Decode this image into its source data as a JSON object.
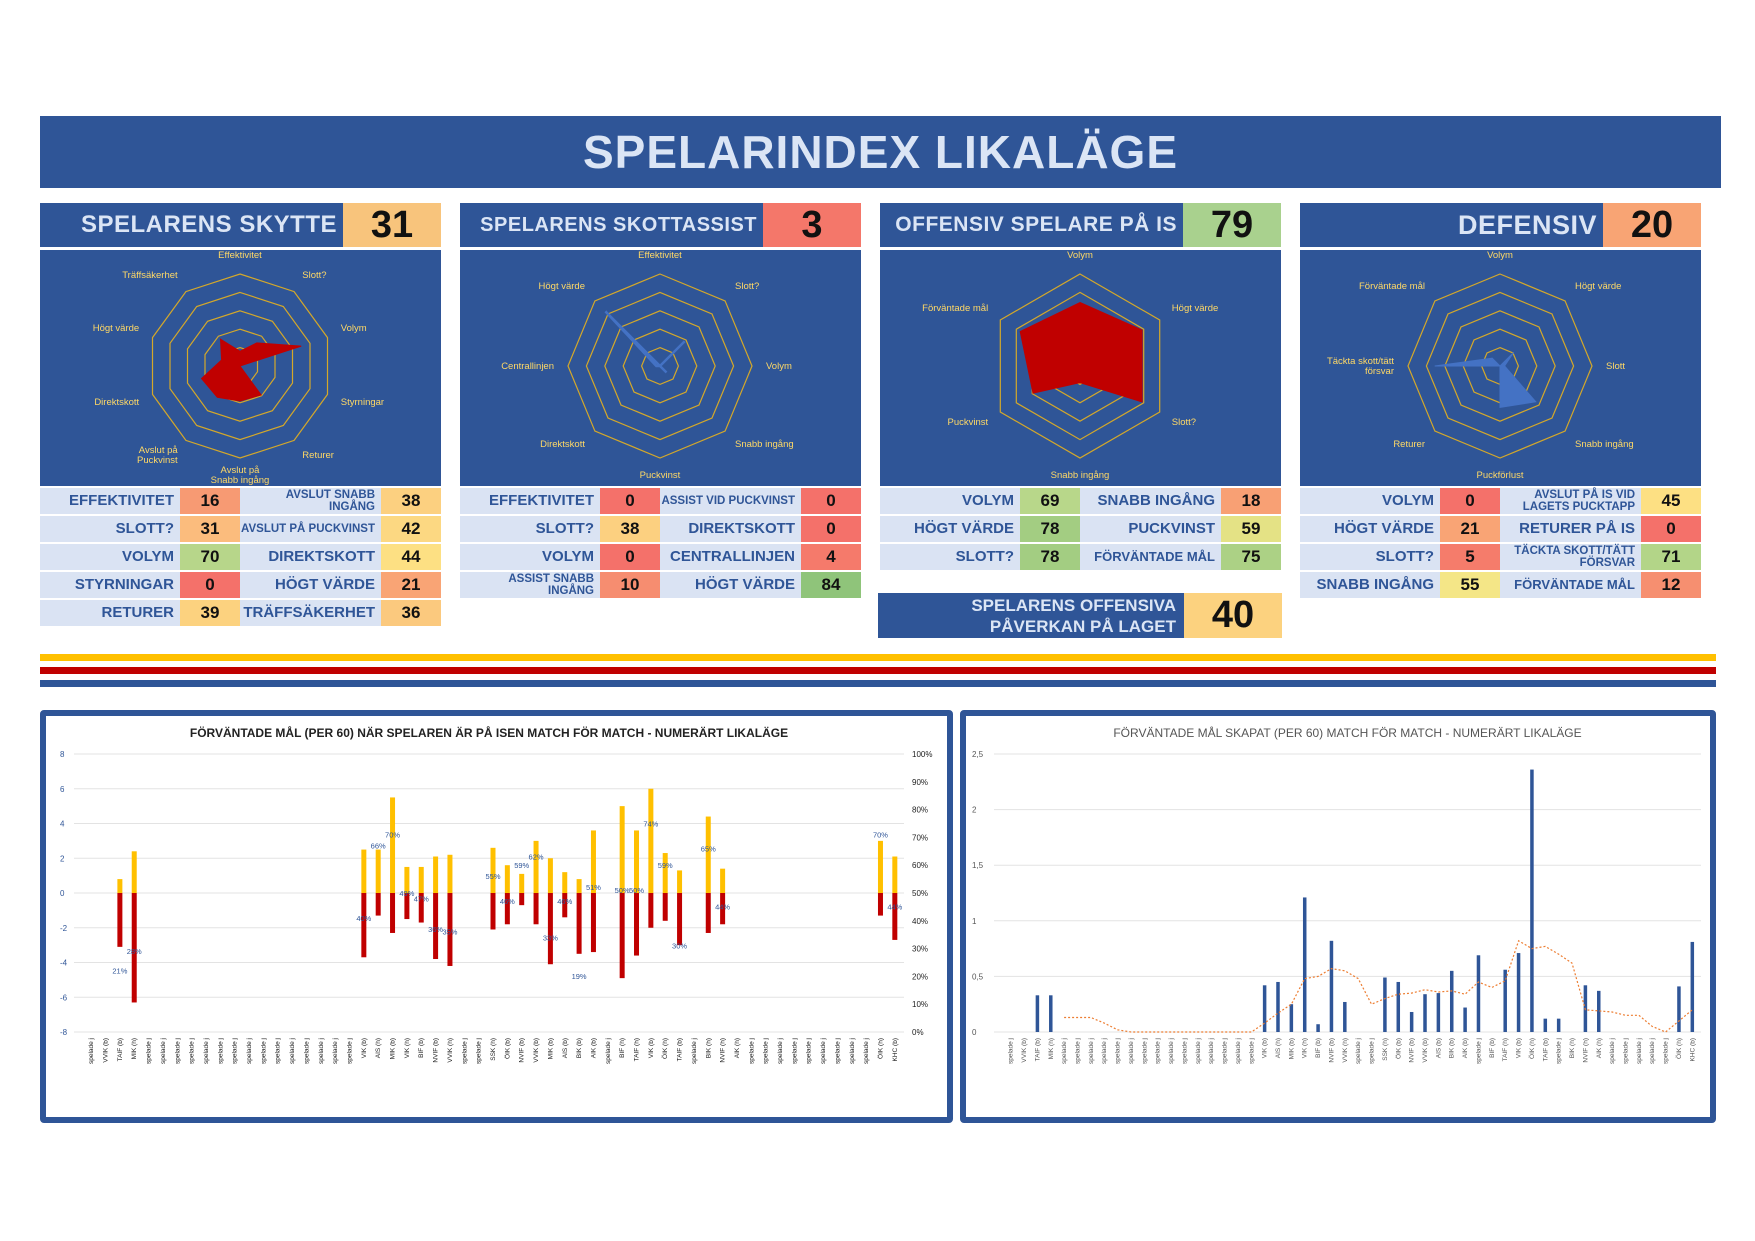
{
  "page_title": "SPELARINDEX LIKALÄGE",
  "colors": {
    "green": "#a9d18e",
    "lightyellow": "#ffe699",
    "orange": "#f8b77a",
    "red": "#f4776a",
    "yellow_line": "#ffc000",
    "red_line": "#c00000",
    "blue": "#2f5597"
  },
  "panels": [
    {
      "title": "SPELARENS SKYTTE",
      "score": "31",
      "score_color": "#f8c47c",
      "title_size": "24px",
      "radar": {
        "labels": [
          "Effektivitet",
          "Slott?",
          "Volym",
          "Styrningar",
          "Returer",
          "Avslut på Snabb ingång",
          "Avslut på Puckvinst",
          "Direktskott",
          "Högt värde",
          "Träffsäkerhet"
        ],
        "values": [
          16,
          31,
          70,
          0,
          39,
          38,
          42,
          44,
          21,
          36
        ],
        "fill": true,
        "color": "#c00000"
      },
      "metrics": [
        {
          "label": "EFFEKTIVITET",
          "value": "16",
          "color": "#f79a73"
        },
        {
          "label": "AVSLUT SNABB INGÅNG",
          "value": "38",
          "color": "#fcd080"
        },
        {
          "label": "SLOTT?",
          "value": "31",
          "color": "#fbbc7d"
        },
        {
          "label": "AVSLUT PÅ PUCKVINST",
          "value": "42",
          "color": "#fcd882"
        },
        {
          "label": "VOLYM",
          "value": "70",
          "color": "#b7d68a"
        },
        {
          "label": "DIREKTSKOTT",
          "value": "44",
          "color": "#fde083"
        },
        {
          "label": "STYRNINGAR",
          "value": "0",
          "color": "#f4716a"
        },
        {
          "label": "HÖGT VÄRDE",
          "value": "21",
          "color": "#f9a475"
        },
        {
          "label": "RETURER",
          "value": "39",
          "color": "#fcd27f"
        },
        {
          "label": "TRÄFFSÄKERHET",
          "value": "36",
          "color": "#fbc97e"
        }
      ]
    },
    {
      "title": "SPELARENS SKOTTASSIST",
      "score": "3",
      "score_color": "#f4776a",
      "title_size": "20px",
      "radar": {
        "labels": [
          "Effektivitet",
          "Slott?",
          "Volym",
          "Snabb ingång",
          "Puckvinst",
          "Direktskott",
          "Centrallinjen",
          "Högt värde"
        ],
        "values": [
          0,
          38,
          0,
          10,
          0,
          0,
          4,
          84
        ],
        "fill": false,
        "color": "#4472c4"
      },
      "metrics": [
        {
          "label": "EFFEKTIVITET",
          "value": "0",
          "color": "#f4716a"
        },
        {
          "label": "ASSIST VID PUCKVINST",
          "value": "0",
          "color": "#f4716a"
        },
        {
          "label": "SLOTT?",
          "value": "38",
          "color": "#fcd080"
        },
        {
          "label": "DIREKTSKOTT",
          "value": "0",
          "color": "#f4716a"
        },
        {
          "label": "VOLYM",
          "value": "0",
          "color": "#f4716a"
        },
        {
          "label": "CENTRALLINJEN",
          "value": "4",
          "color": "#f57a6b"
        },
        {
          "label": "ASSIST SNABB INGÅNG",
          "value": "10",
          "color": "#f68d70"
        },
        {
          "label": "HÖGT VÄRDE",
          "value": "84",
          "color": "#8fc47a"
        }
      ]
    },
    {
      "title": "OFFENSIV SPELARE PÅ IS",
      "score": "79",
      "score_color": "#a9d18e",
      "title_size": "21px",
      "radar": {
        "labels": [
          "Volym",
          "Högt värde",
          "Slott?",
          "Snabb ingång",
          "Puckvinst",
          "Förväntade mål"
        ],
        "values": [
          69,
          78,
          78,
          18,
          59,
          75
        ],
        "fill": true,
        "color": "#c00000"
      },
      "metrics": [
        {
          "label": "VOLYM",
          "value": "69",
          "color": "#b8d78a"
        },
        {
          "label": "SNABB INGÅNG",
          "value": "18",
          "color": "#f8a074"
        },
        {
          "label": "HÖGT VÄRDE",
          "value": "78",
          "color": "#a3cd82"
        },
        {
          "label": "PUCKVINST",
          "value": "59",
          "color": "#e4e285"
        },
        {
          "label": "SLOTT?",
          "value": "78",
          "color": "#a3cd82"
        },
        {
          "label": "FÖRVÄNTADE MÅL",
          "value": "75",
          "color": "#acd185"
        }
      ]
    },
    {
      "title": "DEFENSIV",
      "score": "20",
      "score_color": "#f8a474",
      "title_size": "27px",
      "radar": {
        "labels": [
          "Volym",
          "Högt värde",
          "Slott",
          "Snabb ingång",
          "Puckförlust",
          "Returer",
          "Täckta skott/tätt försvar",
          "Förväntade mål"
        ],
        "values": [
          0,
          21,
          5,
          55,
          45,
          0,
          71,
          12
        ],
        "fill": true,
        "color": "#4472c4"
      },
      "metrics": [
        {
          "label": "VOLYM",
          "value": "0",
          "color": "#f4716a"
        },
        {
          "label": "AVSLUT PÅ IS VID LAGETS PUCKTAPP",
          "value": "45",
          "color": "#fde083"
        },
        {
          "label": "HÖGT VÄRDE",
          "value": "21",
          "color": "#f9a475"
        },
        {
          "label": "RETURER PÅ IS",
          "value": "0",
          "color": "#f4716a"
        },
        {
          "label": "SLOTT?",
          "value": "5",
          "color": "#f57c6b"
        },
        {
          "label": "TÄCKTA SKOTT/TÄTT FÖRSVAR",
          "value": "71",
          "color": "#b3d588"
        },
        {
          "label": "SNABB INGÅNG",
          "value": "55",
          "color": "#f4e687"
        },
        {
          "label": "FÖRVÄNTADE MÅL",
          "value": "12",
          "color": "#f68f70"
        }
      ]
    }
  ],
  "impact": {
    "title": "SPELARENS OFFENSIVA PÅVERKAN PÅ LAGET",
    "value": "40",
    "color": "#fcd27f"
  },
  "chart_data": [
    {
      "type": "bar",
      "title": "FÖRVÄNTADE MÅL (PER 60) NÄR SPELAREN ÄR PÅ ISEN MATCH FÖR MATCH - NUMERÄRT LIKALÄGE",
      "categories": [
        "spelade j",
        "VVIK (b)",
        "TAIF (b)",
        "MIK (h)",
        "spelade j",
        "spelade j",
        "spelade j",
        "spelade j",
        "spelade j",
        "spelade j",
        "spelade j",
        "spelade j",
        "spelade j",
        "spelade j",
        "spelade j",
        "spelade j",
        "spelade j",
        "spelade j",
        "spelade j",
        "VIK (b)",
        "AIS (h)",
        "MIK (b)",
        "VIK (h)",
        "BIF (b)",
        "NVIF (b)",
        "VVIK (h)",
        "spelade j",
        "spelade j",
        "SSK (h)",
        "ÖIK (b)",
        "NVIF (b)",
        "VVIK (b)",
        "MIK (b)",
        "AIS (b)",
        "BIK (b)",
        "AIK (b)",
        "spelade j",
        "BIF (h)",
        "TAIF (h)",
        "VIK (b)",
        "ÖIK (h)",
        "TAIF (b)",
        "spelade j",
        "BIK (h)",
        "NVIF (h)",
        "AIK (h)",
        "spelade j",
        "spelade j",
        "spelade j",
        "spelade j",
        "spelade j",
        "spelade j",
        "spelade j",
        "spelade j",
        "spelade j",
        "ÖIK (h)",
        "KHC (b)"
      ],
      "series": [
        {
          "name": "",
          "values": [
            null,
            null,
            0.8,
            2.4,
            null,
            null,
            null,
            null,
            null,
            null,
            null,
            null,
            null,
            null,
            null,
            null,
            null,
            null,
            null,
            2.5,
            2.5,
            5.5,
            1.5,
            1.5,
            2.1,
            2.2,
            null,
            null,
            2.6,
            1.6,
            1.1,
            3.0,
            2.0,
            1.2,
            0.8,
            3.6,
            null,
            5.0,
            3.6,
            6.0,
            2.3,
            1.3,
            null,
            4.4,
            1.4,
            null,
            null,
            null,
            null,
            null,
            null,
            null,
            null,
            null,
            null,
            3.0,
            2.1
          ]
        },
        {
          "name": "",
          "values": [
            null,
            null,
            -3.1,
            -6.3,
            null,
            null,
            null,
            null,
            null,
            null,
            null,
            null,
            null,
            null,
            null,
            null,
            null,
            null,
            null,
            -3.7,
            -1.3,
            -2.3,
            -1.5,
            -1.7,
            -3.8,
            -4.2,
            null,
            null,
            -2.1,
            -1.8,
            -0.7,
            -1.8,
            -4.1,
            -1.4,
            -3.5,
            -3.4,
            null,
            -4.9,
            -3.6,
            -2.0,
            -1.6,
            -3.0,
            null,
            -2.3,
            -1.8,
            null,
            null,
            null,
            null,
            null,
            null,
            null,
            null,
            null,
            null,
            -1.3,
            -2.7
          ]
        }
      ],
      "percent_labels": [
        null,
        null,
        "21%",
        "28%",
        null,
        null,
        null,
        null,
        null,
        null,
        null,
        null,
        null,
        null,
        null,
        null,
        null,
        null,
        null,
        "40%",
        "66%",
        "70%",
        "49%",
        "47%",
        "36%",
        "35%",
        null,
        null,
        "55%",
        "46%",
        "59%",
        "62%",
        "33%",
        "46%",
        "19%",
        "51%",
        null,
        "50%",
        "50%",
        "74%",
        "59%",
        "30%",
        null,
        "65%",
        "44%",
        null,
        null,
        null,
        null,
        null,
        null,
        null,
        null,
        null,
        null,
        "70%",
        "44%"
      ],
      "ylim": [
        -8,
        8
      ],
      "yticks": [
        "8",
        "6",
        "4",
        "2",
        "0",
        "-2",
        "-4",
        "-6",
        "-8"
      ],
      "y2ticks": [
        "100%",
        "90%",
        "80%",
        "70%",
        "60%",
        "50%",
        "40%",
        "30%",
        "20%",
        "10%",
        "0%"
      ],
      "grid": true
    },
    {
      "type": "bar",
      "title": "FÖRVÄNTADE MÅL SKAPAT (PER 60) MATCH FÖR MATCH - NUMERÄRT LIKALÄGE",
      "categories": [
        "spelade j",
        "VVIK (b)",
        "TAIF (b)",
        "MIK (h)",
        "spelade j",
        "spelade j",
        "spelade j",
        "spelade j",
        "spelade j",
        "spelade j",
        "spelade j",
        "spelade j",
        "spelade j",
        "spelade j",
        "spelade j",
        "spelade j",
        "spelade j",
        "spelade j",
        "spelade j",
        "VIK (b)",
        "AIS (h)",
        "MIK (b)",
        "VIK (h)",
        "BIF (b)",
        "NVIF (b)",
        "VVIK (h)",
        "spelade j",
        "spelade j",
        "SSK (h)",
        "ÖIK (b)",
        "NVIF (b)",
        "VVIK (b)",
        "AIS (b)",
        "BIK (b)",
        "AIK (b)",
        "spelade j",
        "BIF (b)",
        "TAIF (h)",
        "VIK (b)",
        "ÖIK (h)",
        "TAIF (b)",
        "spelade j",
        "BIK (h)",
        "NVIF (h)",
        "AIK (h)",
        "spelade j",
        "spelade j",
        "spelade j",
        "spelade j",
        "spelade j",
        "ÖIK (h)",
        "KHC (b)"
      ],
      "values": [
        0,
        0,
        0.33,
        0.33,
        0,
        0,
        0,
        0,
        0,
        0,
        0,
        0,
        0,
        0,
        0,
        0,
        0,
        0,
        0,
        0.42,
        0.45,
        0.25,
        1.21,
        0.07,
        0.82,
        0.27,
        0,
        0,
        0.49,
        0.45,
        0.18,
        0.34,
        0.35,
        0.55,
        0.22,
        0.69,
        0,
        0.56,
        0.71,
        2.36,
        0.12,
        0.12,
        0,
        0.42,
        0.37,
        0,
        0,
        0,
        0,
        0,
        0.41,
        0.81
      ],
      "trend": [
        null,
        null,
        null,
        null,
        0.13,
        0.13,
        0.13,
        0.08,
        0.02,
        0,
        0,
        0,
        0,
        0,
        0,
        0,
        0,
        0,
        0,
        0.08,
        0.17,
        0.25,
        0.48,
        0.5,
        0.57,
        0.55,
        0.48,
        0.25,
        0.3,
        0.34,
        0.35,
        0.38,
        0.36,
        0.37,
        0.34,
        0.45,
        0.4,
        0.46,
        0.82,
        0.75,
        0.77,
        0.7,
        0.62,
        0.2,
        0.19,
        0.18,
        0.15,
        0.15,
        0.05,
        0,
        0.1,
        0.2
      ],
      "ylim": [
        0,
        2.5
      ],
      "yticks": [
        "2,5",
        "2",
        "1,5",
        "1",
        "0,5",
        "0"
      ],
      "grid": true
    }
  ]
}
